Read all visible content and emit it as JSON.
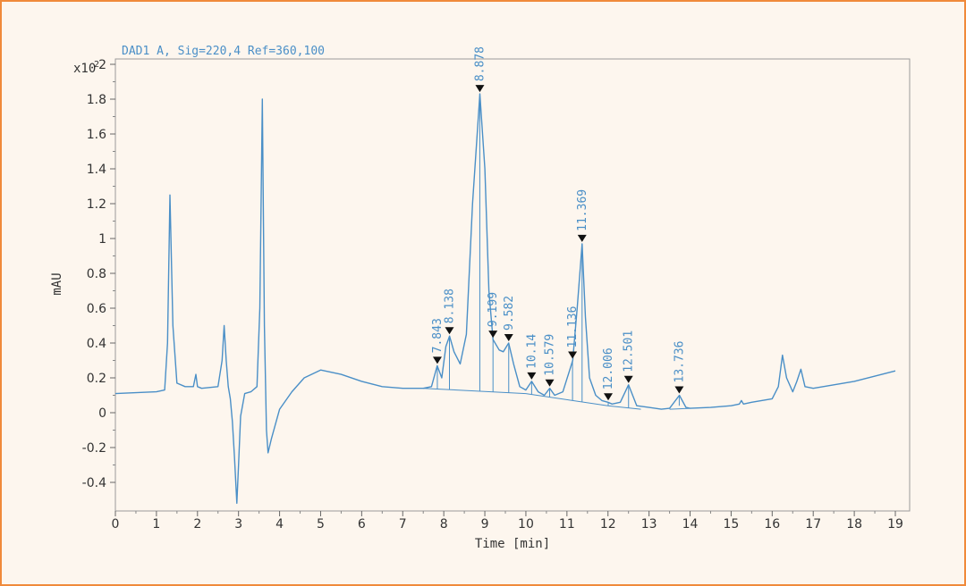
{
  "chart_data": {
    "type": "line",
    "title": "DAD1 A, Sig=220,4 Ref=360,100",
    "xlabel": "Time [min]",
    "ylabel": "mAU",
    "y_multiplier": "x10",
    "y_exponent": "2",
    "xlim": [
      0,
      19
    ],
    "ylim": [
      -0.55,
      2.05
    ],
    "x_ticks": [
      0,
      1,
      2,
      3,
      4,
      5,
      6,
      7,
      8,
      9,
      10,
      11,
      12,
      13,
      14,
      15,
      16,
      17,
      18,
      19
    ],
    "y_ticks": [
      -0.4,
      -0.2,
      0,
      0.2,
      0.4,
      0.6,
      0.8,
      1,
      1.2,
      1.4,
      1.6,
      1.8,
      2
    ],
    "y_tick_labels": [
      "-0.4",
      "-0.2",
      "0",
      "0.2",
      "0.4",
      "0.6",
      "0.8",
      "1",
      "1.2",
      "1.4",
      "1.6",
      "1.8",
      "2"
    ],
    "grid": false,
    "line_color": "#4a8fc7",
    "series": [
      {
        "points": [
          [
            0,
            0.11
          ],
          [
            0.5,
            0.115
          ],
          [
            1.0,
            0.12
          ],
          [
            1.2,
            0.13
          ],
          [
            1.27,
            0.4
          ],
          [
            1.33,
            1.25
          ],
          [
            1.4,
            0.5
          ],
          [
            1.5,
            0.17
          ],
          [
            1.7,
            0.15
          ],
          [
            1.9,
            0.15
          ],
          [
            1.96,
            0.22
          ],
          [
            2.0,
            0.15
          ],
          [
            2.1,
            0.14
          ],
          [
            2.5,
            0.15
          ],
          [
            2.6,
            0.3
          ],
          [
            2.65,
            0.5
          ],
          [
            2.7,
            0.3
          ],
          [
            2.75,
            0.15
          ],
          [
            2.8,
            0.08
          ],
          [
            2.85,
            -0.05
          ],
          [
            2.9,
            -0.25
          ],
          [
            2.96,
            -0.52
          ],
          [
            3.0,
            -0.3
          ],
          [
            3.05,
            -0.02
          ],
          [
            3.15,
            0.11
          ],
          [
            3.3,
            0.12
          ],
          [
            3.45,
            0.15
          ],
          [
            3.52,
            0.6
          ],
          [
            3.58,
            1.8
          ],
          [
            3.63,
            0.5
          ],
          [
            3.68,
            -0.1
          ],
          [
            3.72,
            -0.23
          ],
          [
            3.8,
            -0.15
          ],
          [
            4.0,
            0.02
          ],
          [
            4.3,
            0.12
          ],
          [
            4.6,
            0.2
          ],
          [
            5.0,
            0.245
          ],
          [
            5.5,
            0.22
          ],
          [
            6.0,
            0.18
          ],
          [
            6.5,
            0.15
          ],
          [
            7.0,
            0.14
          ],
          [
            7.5,
            0.14
          ],
          [
            7.7,
            0.15
          ],
          [
            7.84,
            0.27
          ],
          [
            7.95,
            0.2
          ],
          [
            8.05,
            0.38
          ],
          [
            8.14,
            0.44
          ],
          [
            8.25,
            0.35
          ],
          [
            8.4,
            0.28
          ],
          [
            8.55,
            0.45
          ],
          [
            8.7,
            1.2
          ],
          [
            8.88,
            1.83
          ],
          [
            9.0,
            1.4
          ],
          [
            9.1,
            0.7
          ],
          [
            9.2,
            0.42
          ],
          [
            9.35,
            0.36
          ],
          [
            9.45,
            0.35
          ],
          [
            9.58,
            0.4
          ],
          [
            9.7,
            0.28
          ],
          [
            9.85,
            0.15
          ],
          [
            10.0,
            0.13
          ],
          [
            10.14,
            0.18
          ],
          [
            10.3,
            0.12
          ],
          [
            10.45,
            0.1
          ],
          [
            10.58,
            0.14
          ],
          [
            10.7,
            0.1
          ],
          [
            10.9,
            0.12
          ],
          [
            11.14,
            0.3
          ],
          [
            11.25,
            0.6
          ],
          [
            11.37,
            0.97
          ],
          [
            11.45,
            0.55
          ],
          [
            11.55,
            0.2
          ],
          [
            11.7,
            0.1
          ],
          [
            11.85,
            0.07
          ],
          [
            12.0,
            0.06
          ],
          [
            12.1,
            0.05
          ],
          [
            12.3,
            0.06
          ],
          [
            12.5,
            0.16
          ],
          [
            12.7,
            0.04
          ],
          [
            13.0,
            0.03
          ],
          [
            13.3,
            0.02
          ],
          [
            13.5,
            0.025
          ],
          [
            13.74,
            0.1
          ],
          [
            13.9,
            0.03
          ],
          [
            14.0,
            0.025
          ],
          [
            14.5,
            0.03
          ],
          [
            15.0,
            0.04
          ],
          [
            15.2,
            0.05
          ],
          [
            15.25,
            0.07
          ],
          [
            15.3,
            0.05
          ],
          [
            15.5,
            0.06
          ],
          [
            16.0,
            0.08
          ],
          [
            16.15,
            0.15
          ],
          [
            16.25,
            0.33
          ],
          [
            16.35,
            0.2
          ],
          [
            16.5,
            0.12
          ],
          [
            16.6,
            0.18
          ],
          [
            16.7,
            0.25
          ],
          [
            16.8,
            0.15
          ],
          [
            17.0,
            0.14
          ],
          [
            17.5,
            0.16
          ],
          [
            18.0,
            0.18
          ],
          [
            18.5,
            0.21
          ],
          [
            19.0,
            0.24
          ]
        ]
      }
    ],
    "baseline_segments": [
      [
        [
          7.5,
          0.14
        ],
        [
          10.0,
          0.11
        ],
        [
          12.0,
          0.04
        ],
        [
          12.8,
          0.02
        ]
      ],
      [
        [
          13.5,
          0.02
        ],
        [
          14.0,
          0.025
        ]
      ]
    ],
    "peaks": [
      {
        "label": "7.843",
        "rt": 7.843,
        "y": 0.27
      },
      {
        "label": "8.138",
        "rt": 8.138,
        "y": 0.44
      },
      {
        "label": "8.878",
        "rt": 8.878,
        "y": 1.83
      },
      {
        "label": "9.199",
        "rt": 9.199,
        "y": 0.42
      },
      {
        "label": "9.582",
        "rt": 9.582,
        "y": 0.4
      },
      {
        "label": "10.14",
        "rt": 10.14,
        "y": 0.18
      },
      {
        "label": "10.579",
        "rt": 10.579,
        "y": 0.14
      },
      {
        "label": "11.136",
        "rt": 11.136,
        "y": 0.3
      },
      {
        "label": "11.369",
        "rt": 11.369,
        "y": 0.97
      },
      {
        "label": "12.006",
        "rt": 12.006,
        "y": 0.06
      },
      {
        "label": "12.501",
        "rt": 12.501,
        "y": 0.16
      },
      {
        "label": "13.736",
        "rt": 13.736,
        "y": 0.1
      }
    ]
  }
}
